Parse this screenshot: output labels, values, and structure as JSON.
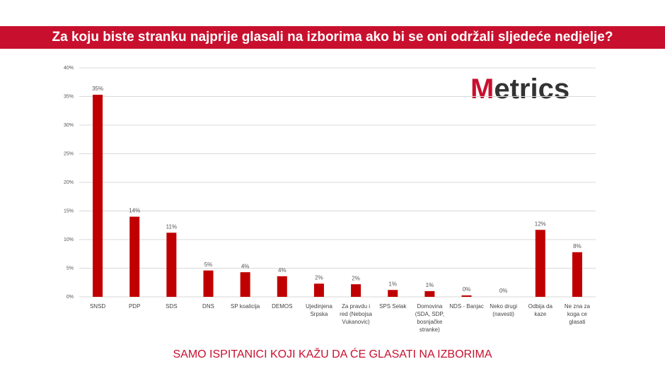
{
  "chart_data": {
    "type": "bar",
    "title": "Za koju biste stranku najprije glasali na izborima ako bi se oni održali sljedeće nedjelje?",
    "subtitle": "SAMO ISPITANICI KOJI KAŽU DA ĆE GLASATI NA IZBORIMA",
    "categories": [
      "SNSD",
      "PDP",
      "SDS",
      "DNS",
      "SP koalicija",
      "DEMOS",
      "Ujedinjena Srpska",
      "Za pravdu i red (Nebojsa Vukanovic)",
      "SPS Selak",
      "Domovina (SDA, SDP, bosnjačke stranke)",
      "NDS - Banjac",
      "Neko drugi (navesti)",
      "Odbija da kaze",
      "Ne zna za koga ce glasati"
    ],
    "values": [
      35.3,
      14.0,
      11.2,
      4.6,
      4.3,
      3.6,
      2.3,
      2.2,
      1.2,
      1.0,
      0.25,
      0,
      11.7,
      7.8
    ],
    "value_labels": [
      "35%",
      "14%",
      "11%",
      "5%",
      "4%",
      "4%",
      "2%",
      "2%",
      "1%",
      "1%",
      "0%",
      "0%",
      "12%",
      "8%"
    ],
    "color": "#c00000",
    "ylim": [
      0,
      40
    ],
    "yticks": [
      {
        "value": 0,
        "label": "0%"
      },
      {
        "value": 5,
        "label": "5%"
      },
      {
        "value": 10,
        "label": "10%"
      },
      {
        "value": 15,
        "label": "15%"
      },
      {
        "value": 20,
        "label": "20%"
      },
      {
        "value": 25,
        "label": "25%"
      },
      {
        "value": 30,
        "label": "30%"
      },
      {
        "value": 35,
        "label": "35%"
      },
      {
        "value": 40,
        "label": "40%"
      }
    ],
    "grid": true
  },
  "logo": "Metrics"
}
